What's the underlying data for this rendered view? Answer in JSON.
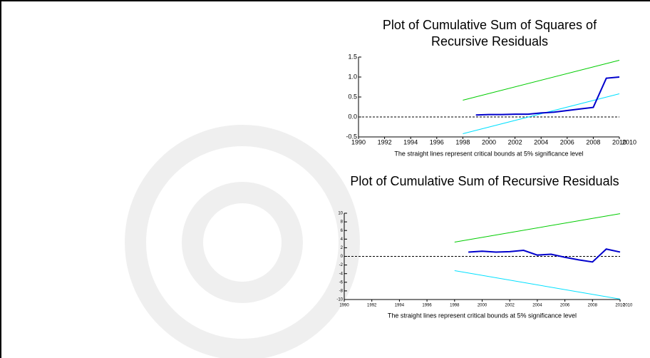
{
  "chart_data": [
    {
      "type": "line",
      "title": "Plot of Cumulative Sum of Squares of Recursive Residuals",
      "note": "The straight lines represent critical bounds at 5% significance level",
      "corner_label": "2010",
      "xlim": [
        1990,
        2010
      ],
      "xticks": [
        1990,
        1992,
        1994,
        1996,
        1998,
        2000,
        2002,
        2004,
        2006,
        2008,
        2010
      ],
      "ylim": [
        -0.5,
        1.5
      ],
      "yticks": [
        {
          "value": -0.5,
          "label": "-0.5"
        },
        {
          "value": 0,
          "label": "0.0"
        },
        {
          "value": 0.5,
          "label": "0.5"
        },
        {
          "value": 1,
          "label": "1.0"
        },
        {
          "value": 1.5,
          "label": "1.5"
        }
      ],
      "hline": 0,
      "series": [
        {
          "color": "#00cc00",
          "x": [
            1998,
            2010
          ],
          "values": [
            0.42,
            1.42
          ]
        },
        {
          "color": "#00e0ff",
          "x": [
            1998,
            2010
          ],
          "values": [
            -0.42,
            0.58
          ]
        },
        {
          "color": "#0000cc",
          "x": [
            1999,
            2000,
            2001,
            2002,
            2003,
            2004,
            2005,
            2006,
            2007,
            2008,
            2009,
            2010
          ],
          "values": [
            0.05,
            0.06,
            0.06,
            0.07,
            0.07,
            0.1,
            0.12,
            0.16,
            0.2,
            0.24,
            0.97,
            1.0
          ]
        }
      ]
    },
    {
      "type": "line",
      "title": "Plot of Cumulative Sum of Recursive Residuals",
      "note": "The straight lines represent critical bounds at 5% significance level",
      "corner_label": "2010",
      "xlim": [
        1990,
        2010
      ],
      "xticks": [
        1990,
        1992,
        1994,
        1996,
        1998,
        2000,
        2002,
        2004,
        2006,
        2008,
        2010
      ],
      "ylim": [
        -10,
        10
      ],
      "yticks": [
        -10,
        -8,
        -6,
        -4,
        -2,
        0,
        2,
        4,
        6,
        8,
        10
      ],
      "hline": 0,
      "series": [
        {
          "color": "#00cc00",
          "x": [
            1998,
            2010
          ],
          "values": [
            3.3,
            9.9
          ]
        },
        {
          "color": "#00e0ff",
          "x": [
            1998,
            2010
          ],
          "values": [
            -3.3,
            -9.9
          ]
        },
        {
          "color": "#0000cc",
          "x": [
            1999,
            2000,
            2001,
            2002,
            2003,
            2004,
            2005,
            2006,
            2007,
            2008,
            2009,
            2010
          ],
          "values": [
            1.0,
            1.2,
            1.0,
            1.1,
            1.4,
            0.3,
            0.5,
            -0.2,
            -0.8,
            -1.3,
            1.7,
            1.0
          ]
        }
      ]
    }
  ]
}
